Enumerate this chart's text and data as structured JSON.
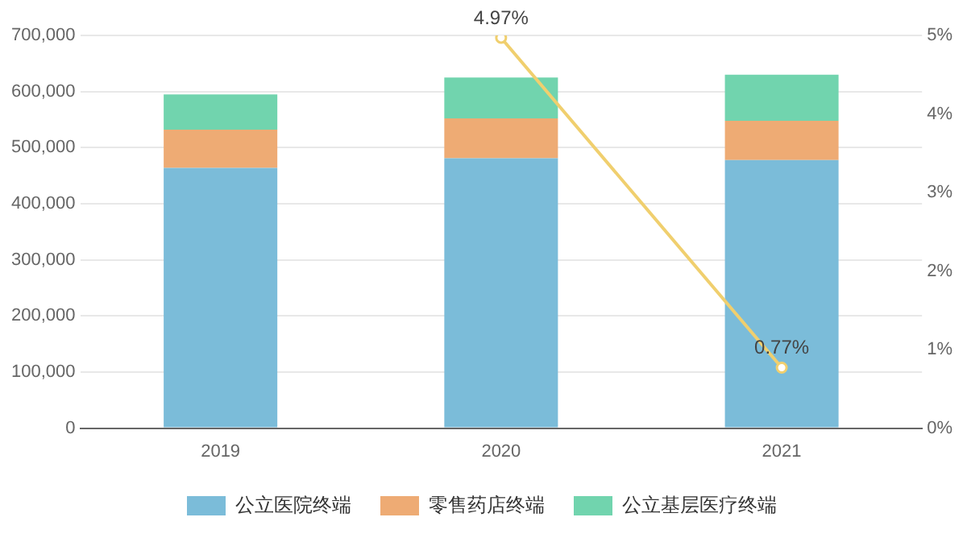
{
  "chart_data": {
    "type": "bar",
    "stacked": true,
    "categories": [
      "2019",
      "2020",
      "2021"
    ],
    "series": [
      {
        "name": "公立医院终端",
        "color": "#7bbcd9",
        "values": [
          464000,
          481000,
          478000
        ]
      },
      {
        "name": "零售药店终端",
        "color": "#eeab74",
        "values": [
          68000,
          71000,
          70000
        ]
      },
      {
        "name": "公立基层医疗终端",
        "color": "#71d4ae",
        "values": [
          63000,
          73000,
          82000
        ]
      },
      {
        "type": "line",
        "axis": "y2",
        "color": "#f0cf6e",
        "values": [
          null,
          4.97,
          0.77
        ],
        "value_labels": [
          null,
          "4.97%",
          "0.77%"
        ],
        "marker": "circle"
      }
    ],
    "ylim": [
      0,
      700000
    ],
    "yticks": [
      {
        "value": 0,
        "label": "0"
      },
      {
        "value": 100000,
        "label": "100,000"
      },
      {
        "value": 200000,
        "label": "200,000"
      },
      {
        "value": 300000,
        "label": "300,000"
      },
      {
        "value": 400000,
        "label": "400,000"
      },
      {
        "value": 500000,
        "label": "500,000"
      },
      {
        "value": 600000,
        "label": "600,000"
      },
      {
        "value": 700000,
        "label": "700,000"
      }
    ],
    "y2lim": [
      0,
      5
    ],
    "y2ticks": [
      {
        "value": 0,
        "label": "0%"
      },
      {
        "value": 1,
        "label": "1%"
      },
      {
        "value": 2,
        "label": "2%"
      },
      {
        "value": 3,
        "label": "3%"
      },
      {
        "value": 4,
        "label": "4%"
      },
      {
        "value": 5,
        "label": "5%"
      }
    ],
    "grid": "y",
    "legend": "bottom"
  }
}
